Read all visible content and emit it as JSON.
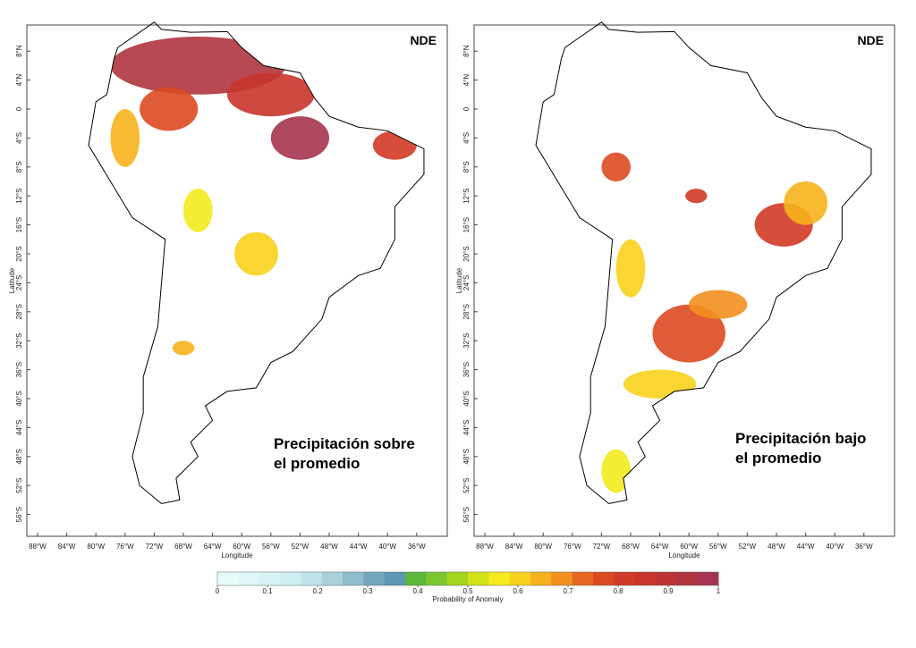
{
  "panels": [
    {
      "tag": "NDE",
      "annotation": [
        "Precipitación sobre",
        "el promedio"
      ],
      "xlabel": "Longitude",
      "ylabel": "Latitude"
    },
    {
      "tag": "NDE",
      "annotation": [
        "Precipitación bajo",
        "el promedio"
      ],
      "xlabel": "Longitude",
      "ylabel": "Latitude"
    }
  ],
  "yticks": [
    {
      "value": 8,
      "label": "8°N"
    },
    {
      "value": 4,
      "label": "4°N"
    },
    0,
    {
      "value": -4,
      "label": "4°S"
    },
    {
      "value": -8,
      "label": "8°S"
    },
    {
      "value": -12,
      "label": "12°S"
    },
    {
      "value": -16,
      "label": "16°S"
    },
    {
      "value": -20,
      "label": "20°S"
    },
    {
      "value": -24,
      "label": "24°S"
    },
    {
      "value": -28,
      "label": "28°S"
    },
    {
      "value": -32,
      "label": "32°S"
    },
    {
      "value": -36,
      "label": "36°S"
    },
    {
      "value": -40,
      "label": "40°S"
    },
    {
      "value": -44,
      "label": "44°S"
    },
    {
      "value": -48,
      "label": "48°S"
    },
    {
      "value": -52,
      "label": "52°S"
    },
    {
      "value": -56,
      "label": "56°S"
    }
  ],
  "xticks": [
    {
      "value": -88,
      "label": "88°W"
    },
    {
      "value": -84,
      "label": "84°W"
    },
    {
      "value": -80,
      "label": "80°W"
    },
    {
      "value": -76,
      "label": "76°W"
    },
    {
      "value": -72,
      "label": "72°W"
    },
    {
      "value": -68,
      "label": "68°W"
    },
    {
      "value": -64,
      "label": "64°W"
    },
    {
      "value": -60,
      "label": "60°W"
    },
    {
      "value": -56,
      "label": "56°W"
    },
    {
      "value": -52,
      "label": "52°W"
    },
    {
      "value": -48,
      "label": "48°W"
    },
    {
      "value": -44,
      "label": "44°W"
    },
    {
      "value": -40,
      "label": "40°W"
    },
    {
      "value": -36,
      "label": "36°W"
    }
  ],
  "colorbar": {
    "label": "Probability of Anomaly",
    "range": [
      0,
      1
    ],
    "ticks": [
      0,
      0.1,
      0.2,
      0.3,
      0.4,
      0.5,
      0.6,
      0.7,
      0.8,
      0.9,
      1
    ],
    "colors": [
      "#e8fbfb",
      "#e0f8f8",
      "#d6f4f5",
      "#cdeff1",
      "#bfe4ea",
      "#a9d1dc",
      "#8fbccd",
      "#74a7bf",
      "#5e96b5",
      "#5cb83a",
      "#7cc630",
      "#a5d41f",
      "#d2e21a",
      "#f4ea1e",
      "#f8d21c",
      "#f6b21c",
      "#f28f1f",
      "#e7661f",
      "#dc4a21",
      "#d13a26",
      "#c8352c",
      "#bd3333",
      "#b0343f",
      "#a5344e"
    ]
  }
}
